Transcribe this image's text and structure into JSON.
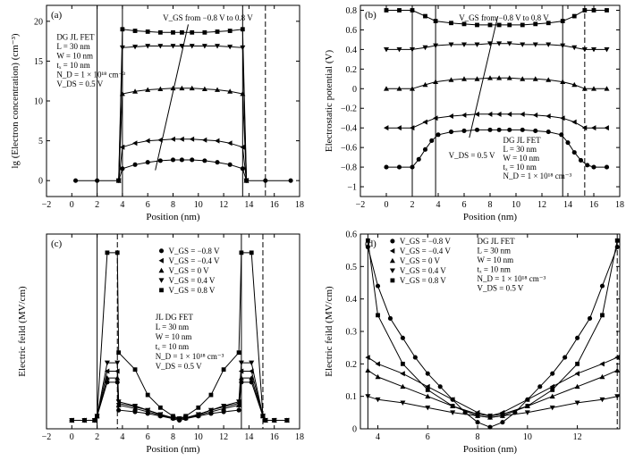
{
  "chart_data": [
    {
      "panel_label": "(a)",
      "type": "line",
      "xlabel": "Position (nm)",
      "ylabel": "lg (Electron concentration) (cm⁻³)",
      "xlim": [
        -2,
        18
      ],
      "ylim": [
        -2,
        22
      ],
      "xticks": [
        -2,
        0,
        2,
        4,
        6,
        8,
        10,
        12,
        14,
        16,
        18
      ],
      "yticks": [
        0,
        5,
        10,
        15,
        20
      ],
      "vlines": [
        {
          "x": 2,
          "style": "solid"
        },
        {
          "x": 4,
          "style": "solid"
        },
        {
          "x": 13.5,
          "style": "solid"
        },
        {
          "x": 15.3,
          "style": "dashed"
        }
      ],
      "legend_lines": [
        "DG JL FET",
        "L = 30 nm",
        "W = 10 nm",
        "tₓ = 10 nm",
        "N_D = 1 × 10¹⁸ cm⁻³",
        "V_DS = 0.5 V"
      ],
      "annotation": "V_GS from −0.8 V to 0.8 V",
      "series": [
        {
          "marker": "circle",
          "x": [
            0.3,
            2,
            3.7,
            4,
            5,
            6,
            7,
            8,
            8.7,
            9.5,
            10.5,
            11.5,
            12.5,
            13.5,
            13.8,
            15.3,
            17.3
          ],
          "values": [
            0,
            0,
            0,
            1.5,
            2.0,
            2.3,
            2.5,
            2.6,
            2.6,
            2.6,
            2.5,
            2.3,
            2.0,
            1.5,
            0,
            0,
            0
          ]
        },
        {
          "marker": "triangle-left",
          "x": [
            3.7,
            4,
            5,
            6,
            7,
            8,
            8.7,
            9.5,
            10.5,
            11.5,
            12.5,
            13.5,
            13.8
          ],
          "values": [
            0,
            4.2,
            4.7,
            5.0,
            5.1,
            5.2,
            5.2,
            5.2,
            5.1,
            5.0,
            4.7,
            4.2,
            0
          ]
        },
        {
          "marker": "triangle-up",
          "x": [
            3.7,
            4,
            5,
            6,
            7,
            8,
            8.7,
            9.5,
            10.5,
            11.5,
            12.5,
            13.5,
            13.8
          ],
          "values": [
            0,
            10.9,
            11.2,
            11.4,
            11.5,
            11.6,
            11.6,
            11.6,
            11.5,
            11.4,
            11.2,
            10.9,
            0
          ]
        },
        {
          "marker": "triangle-down",
          "x": [
            3.7,
            4,
            5,
            6,
            7,
            8,
            8.7,
            9.5,
            10.5,
            11.5,
            12.5,
            13.5,
            13.8
          ],
          "values": [
            0,
            16.7,
            16.8,
            16.9,
            16.9,
            16.9,
            16.9,
            16.9,
            16.9,
            16.9,
            16.8,
            16.7,
            0
          ]
        },
        {
          "marker": "square",
          "x": [
            3.7,
            4,
            5,
            6,
            7,
            8,
            8.7,
            9.5,
            10.5,
            11.5,
            12.5,
            13.5,
            13.8
          ],
          "values": [
            0,
            19.0,
            18.8,
            18.7,
            18.6,
            18.6,
            18.6,
            18.6,
            18.6,
            18.7,
            18.8,
            19.0,
            0
          ]
        }
      ]
    },
    {
      "panel_label": "(b)",
      "type": "line",
      "xlabel": "Position (nm)",
      "ylabel": "Electrostatic potential (V)",
      "xlim": [
        -2,
        18
      ],
      "ylim": [
        -1.1,
        0.85
      ],
      "xticks": [
        -2,
        0,
        2,
        4,
        6,
        8,
        10,
        12,
        14,
        16,
        18
      ],
      "yticks": [
        -1.0,
        -0.8,
        -0.6,
        -0.4,
        -0.2,
        0,
        0.2,
        0.4,
        0.6,
        0.8
      ],
      "vlines": [
        {
          "x": 2,
          "style": "solid"
        },
        {
          "x": 3.8,
          "style": "solid"
        },
        {
          "x": 13.6,
          "style": "solid"
        },
        {
          "x": 15.3,
          "style": "dashed"
        }
      ],
      "legend_lines": [
        "DG JL FET",
        "L = 30 nm",
        "W = 10 nm",
        "tₓ = 10 nm",
        "N_D = 1 × 10¹⁸ cm⁻³"
      ],
      "annotations": [
        "V_GS from −0.8 V to 0.8 V",
        "V_DS = 0.5 V"
      ],
      "series": [
        {
          "marker": "circle",
          "x": [
            0,
            1,
            2,
            2.5,
            3,
            3.5,
            4,
            5,
            6,
            7,
            8,
            8.7,
            9.5,
            10.5,
            11.5,
            12.5,
            13.5,
            14,
            14.5,
            15,
            15.5,
            16,
            17
          ],
          "values": [
            -0.8,
            -0.8,
            -0.8,
            -0.72,
            -0.62,
            -0.53,
            -0.47,
            -0.44,
            -0.43,
            -0.42,
            -0.42,
            -0.42,
            -0.42,
            -0.42,
            -0.43,
            -0.44,
            -0.47,
            -0.55,
            -0.65,
            -0.73,
            -0.78,
            -0.8,
            -0.8
          ]
        },
        {
          "marker": "triangle-left",
          "x": [
            0,
            1,
            2,
            3,
            3.8,
            5,
            6,
            7,
            8,
            8.7,
            9.5,
            10.5,
            11.5,
            12.5,
            13.6,
            14.5,
            15.3,
            16,
            17
          ],
          "values": [
            -0.4,
            -0.4,
            -0.4,
            -0.34,
            -0.3,
            -0.28,
            -0.27,
            -0.26,
            -0.26,
            -0.26,
            -0.26,
            -0.26,
            -0.27,
            -0.28,
            -0.3,
            -0.34,
            -0.4,
            -0.4,
            -0.4
          ]
        },
        {
          "marker": "triangle-up",
          "x": [
            0,
            1,
            2,
            3,
            3.8,
            5,
            6,
            7,
            8,
            8.7,
            9.5,
            10.5,
            11.5,
            12.5,
            13.6,
            14.5,
            15.3,
            16,
            17
          ],
          "values": [
            0,
            0,
            0,
            0.04,
            0.07,
            0.09,
            0.1,
            0.1,
            0.11,
            0.11,
            0.11,
            0.1,
            0.1,
            0.09,
            0.07,
            0.04,
            0,
            0,
            0
          ]
        },
        {
          "marker": "triangle-down",
          "x": [
            0,
            1,
            2,
            3,
            3.8,
            5,
            6,
            7,
            8,
            8.7,
            9.5,
            10.5,
            11.5,
            12.5,
            13.6,
            14.5,
            15.3,
            16,
            17
          ],
          "values": [
            0.4,
            0.4,
            0.4,
            0.42,
            0.44,
            0.45,
            0.45,
            0.45,
            0.46,
            0.46,
            0.46,
            0.45,
            0.45,
            0.45,
            0.44,
            0.42,
            0.4,
            0.4,
            0.4
          ]
        },
        {
          "marker": "square",
          "x": [
            0,
            1,
            2,
            3,
            3.8,
            5,
            6,
            7,
            8,
            8.7,
            9.5,
            10.5,
            11.5,
            12.5,
            13.6,
            14.5,
            15.3,
            16,
            17
          ],
          "values": [
            0.8,
            0.8,
            0.8,
            0.74,
            0.69,
            0.67,
            0.66,
            0.65,
            0.65,
            0.65,
            0.65,
            0.65,
            0.66,
            0.67,
            0.69,
            0.74,
            0.8,
            0.8,
            0.8
          ]
        }
      ]
    },
    {
      "panel_label": "(c)",
      "type": "line",
      "xlabel": "Position (nm)",
      "ylabel": "Electric feild (MV/cm)",
      "xlim": [
        -2,
        18
      ],
      "ylim": [
        -0.1,
        2.2
      ],
      "xticks": [
        -2,
        0,
        2,
        4,
        6,
        8,
        10,
        12,
        14,
        16,
        18
      ],
      "yticks": [],
      "vlines": [
        {
          "x": 2,
          "style": "solid"
        },
        {
          "x": 3.6,
          "style": "dashed"
        },
        {
          "x": 13.4,
          "style": "solid"
        },
        {
          "x": 15.1,
          "style": "dashed"
        }
      ],
      "legend": [
        "V_GS = −0.8 V",
        "V_GS = −0.4 V",
        "V_GS = 0 V",
        "V_GS = 0.4 V",
        "V_GS = 0.8 V"
      ],
      "legend_lines": [
        "JL DG FET",
        "L = 30 nm",
        "W = 10 nm",
        "tₓ = 10 nm",
        "N_D = 1 × 10¹⁸ cm⁻³",
        "V_DS = 0.5 V"
      ],
      "series": [
        {
          "name": "V_GS = −0.8 V",
          "marker": "circle",
          "x": [
            0,
            1,
            1.8,
            2,
            2.8,
            3.6,
            3.7,
            5,
            6,
            7,
            8,
            8.5,
            9,
            10,
            11,
            12,
            13.2,
            13.4,
            14.2,
            15.1,
            15.3,
            16,
            17
          ],
          "values": [
            0,
            0,
            0,
            0.05,
            0.45,
            0.45,
            0.12,
            0.1,
            0.08,
            0.05,
            0.02,
            0,
            0.02,
            0.05,
            0.08,
            0.1,
            0.12,
            0.45,
            0.45,
            0.05,
            0,
            0,
            0
          ]
        },
        {
          "name": "V_GS = −0.4 V",
          "marker": "triangle-left",
          "x": [
            0,
            1,
            1.8,
            2,
            2.8,
            3.6,
            3.7,
            5,
            6,
            7,
            8,
            8.5,
            9,
            10,
            11,
            12,
            13.2,
            13.4,
            14.2,
            15.1,
            15.3,
            16,
            17
          ],
          "values": [
            0,
            0,
            0,
            0.05,
            0.58,
            0.58,
            0.2,
            0.16,
            0.12,
            0.07,
            0.03,
            0.02,
            0.03,
            0.07,
            0.12,
            0.16,
            0.2,
            0.58,
            0.58,
            0.05,
            0,
            0,
            0
          ]
        },
        {
          "name": "V_GS = 0 V",
          "marker": "triangle-up",
          "x": [
            0,
            1,
            1.8,
            2,
            2.8,
            3.6,
            3.7,
            5,
            6,
            7,
            8,
            8.5,
            9,
            10,
            11,
            12,
            13.2,
            13.4,
            14.2,
            15.1,
            15.3,
            16,
            17
          ],
          "values": [
            0,
            0,
            0,
            0.05,
            0.5,
            0.5,
            0.18,
            0.14,
            0.1,
            0.06,
            0.03,
            0.02,
            0.03,
            0.06,
            0.1,
            0.14,
            0.18,
            0.5,
            0.5,
            0.05,
            0,
            0,
            0
          ]
        },
        {
          "name": "V_GS = 0.4 V",
          "marker": "triangle-down",
          "x": [
            0,
            1,
            1.8,
            2,
            2.8,
            3.6,
            3.7,
            5,
            6,
            7,
            8,
            8.5,
            9,
            10,
            11,
            12,
            13.2,
            13.4,
            14.2,
            15.1,
            15.3,
            16,
            17
          ],
          "values": [
            0,
            0,
            0,
            0.05,
            0.68,
            0.68,
            0.22,
            0.17,
            0.12,
            0.07,
            0.03,
            0.02,
            0.03,
            0.07,
            0.12,
            0.17,
            0.22,
            0.68,
            0.68,
            0.05,
            0,
            0,
            0
          ]
        },
        {
          "name": "V_GS = 0.8 V",
          "marker": "square",
          "x": [
            0,
            1,
            1.8,
            2,
            2.8,
            3.6,
            3.7,
            5,
            6,
            7,
            8,
            8.5,
            9,
            10,
            11,
            12,
            13.2,
            13.4,
            14.2,
            15.1,
            15.3,
            16,
            17
          ],
          "values": [
            0,
            0,
            0,
            0.05,
            1.98,
            1.98,
            0.8,
            0.6,
            0.3,
            0.15,
            0.05,
            0.02,
            0.05,
            0.15,
            0.3,
            0.6,
            0.8,
            1.98,
            1.98,
            0.05,
            0,
            0,
            0
          ]
        }
      ]
    },
    {
      "panel_label": "(d)",
      "type": "line",
      "xlabel": "Position (nm)",
      "ylabel": "Electric feild (MV/cm)",
      "xlim": [
        3.3,
        13.7
      ],
      "ylim": [
        0,
        0.6
      ],
      "xticks": [
        4,
        6,
        8,
        10,
        12
      ],
      "yticks": [
        0,
        0.1,
        0.2,
        0.3,
        0.4,
        0.5,
        0.6
      ],
      "vlines": [
        {
          "x": 3.6,
          "style": "solid"
        },
        {
          "x": 13.6,
          "style": "dashed"
        }
      ],
      "legend": [
        "V_GS = −0.8 V",
        "V_GS = −0.4 V",
        "V_GS = 0 V",
        "V_GS = 0.4 V",
        "V_GS = 0.8 V"
      ],
      "legend_lines": [
        "DG JL FET",
        "L = 30 nm",
        "W = 10 nm",
        "tₓ = 10 nm",
        "N_D = 1 × 10¹⁸ cm⁻³",
        "V_DS = 0.5 V"
      ],
      "series": [
        {
          "name": "V_GS = −0.8 V",
          "marker": "circle",
          "x": [
            3.6,
            4,
            4.5,
            5,
            5.5,
            6,
            6.5,
            7,
            7.5,
            8,
            8.5,
            9,
            9.5,
            10,
            10.5,
            11,
            11.5,
            12,
            12.5,
            13,
            13.6
          ],
          "values": [
            0.56,
            0.44,
            0.34,
            0.28,
            0.22,
            0.17,
            0.13,
            0.09,
            0.05,
            0.02,
            0.005,
            0.02,
            0.05,
            0.09,
            0.13,
            0.17,
            0.22,
            0.28,
            0.34,
            0.44,
            0.56
          ]
        },
        {
          "name": "V_GS = −0.4 V",
          "marker": "triangle-left",
          "x": [
            3.6,
            4,
            5,
            6,
            7,
            8,
            8.5,
            9,
            10,
            11,
            12,
            13,
            13.6
          ],
          "values": [
            0.22,
            0.2,
            0.17,
            0.13,
            0.09,
            0.05,
            0.04,
            0.05,
            0.09,
            0.13,
            0.17,
            0.2,
            0.22
          ]
        },
        {
          "name": "V_GS = 0 V",
          "marker": "triangle-up",
          "x": [
            3.6,
            4,
            5,
            6,
            7,
            8,
            8.5,
            9,
            10,
            11,
            12,
            13,
            13.6
          ],
          "values": [
            0.18,
            0.16,
            0.13,
            0.1,
            0.07,
            0.04,
            0.035,
            0.04,
            0.07,
            0.1,
            0.13,
            0.16,
            0.18
          ]
        },
        {
          "name": "V_GS = 0.4 V",
          "marker": "triangle-down",
          "x": [
            3.6,
            4,
            5,
            6,
            7,
            8,
            8.5,
            9,
            10,
            11,
            12,
            13,
            13.6
          ],
          "values": [
            0.1,
            0.09,
            0.08,
            0.065,
            0.05,
            0.04,
            0.035,
            0.04,
            0.05,
            0.065,
            0.08,
            0.09,
            0.1
          ]
        },
        {
          "name": "V_GS = 0.8 V",
          "marker": "square",
          "x": [
            3.6,
            4,
            5,
            6,
            7,
            8,
            8.5,
            9,
            10,
            11,
            12,
            13,
            13.6
          ],
          "values": [
            0.58,
            0.35,
            0.2,
            0.12,
            0.07,
            0.045,
            0.04,
            0.045,
            0.07,
            0.12,
            0.2,
            0.35,
            0.58
          ]
        }
      ]
    }
  ]
}
